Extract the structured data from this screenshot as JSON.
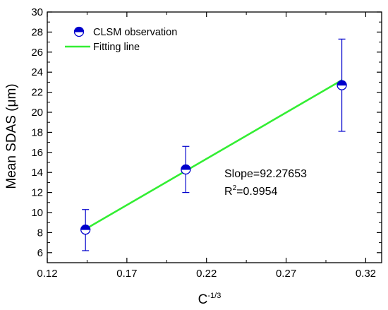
{
  "chart_data": {
    "type": "scatter",
    "xlabel": "C",
    "xlabel_superscript": "-1/3",
    "ylabel": "Mean SDAS (μm)",
    "xlim": [
      0.12,
      0.33
    ],
    "ylim": [
      5,
      30
    ],
    "x_ticks": [
      "0.12",
      "0.17",
      "0.22",
      "0.27",
      "0.32"
    ],
    "y_ticks": [
      "6",
      "8",
      "10",
      "12",
      "14",
      "16",
      "18",
      "20",
      "22",
      "24",
      "26",
      "28",
      "30"
    ],
    "grid": false,
    "legend_position": "top-left",
    "series": [
      {
        "name": "CLSM observation",
        "marker": "half-filled-circle",
        "color": "#0000cc",
        "x": [
          0.144,
          0.207,
          0.305
        ],
        "y": [
          8.3,
          14.3,
          22.7
        ],
        "error_low": [
          6.2,
          12.0,
          18.1
        ],
        "error_high": [
          10.3,
          16.6,
          27.3
        ]
      },
      {
        "name": "Fitting line",
        "type": "line",
        "color": "#33ee33",
        "x": [
          0.144,
          0.305
        ],
        "y": [
          8.35,
          23.2
        ]
      }
    ],
    "annotations": {
      "slope_text": "Slope=92.27653",
      "r2_base": "R",
      "r2_sup": "2",
      "r2_value": "=0.9954"
    }
  }
}
